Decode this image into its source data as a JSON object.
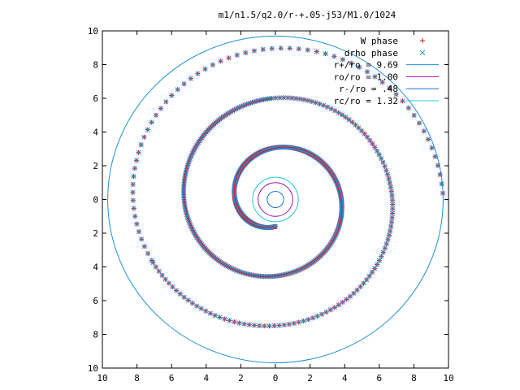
{
  "chart_data": {
    "type": "scatter",
    "title": "m1/n1.5/q2.0/r-+.05-j53/M1.0/1024",
    "xlim": [
      -10,
      10
    ],
    "ylim": [
      -10,
      10
    ],
    "x_ticks": [
      -10,
      -8,
      -6,
      -4,
      -2,
      0,
      2,
      4,
      6,
      8,
      10
    ],
    "y_ticks": [
      -10,
      -8,
      -6,
      -4,
      -2,
      0,
      2,
      4,
      6,
      8,
      10
    ],
    "x_tick_labels": [
      "10",
      "8",
      "6",
      "4",
      "2",
      "0",
      "2",
      "4",
      "6",
      "8",
      "10"
    ],
    "y_tick_labels": [
      "10",
      "8",
      "6",
      "4",
      "2",
      "0",
      "2",
      "4",
      "6",
      "8",
      "10"
    ],
    "grid": false,
    "legend_position": "top-right",
    "spiral": {
      "theta_end_deg": 0,
      "r_inner": 1.6,
      "r_outer": 9.7,
      "turns": 2.75
    },
    "series": [
      {
        "name": "W phase",
        "marker": "+",
        "color": "#e41a1c"
      },
      {
        "name": "drho phase",
        "marker": "x",
        "color": "#1f8fd6"
      }
    ],
    "circles": [
      {
        "name": "r+/ro = 9.69",
        "radius": 9.69,
        "color": "#1f8fd6"
      },
      {
        "name": "ro/ro = 1.00",
        "radius": 1.0,
        "color": "#a0149f"
      },
      {
        "name": "r-/ro = .48",
        "radius": 0.48,
        "color": "#1f6fd6"
      },
      {
        "name": "rc/ro = 1.32",
        "radius": 1.32,
        "color": "#20c8d8"
      }
    ]
  }
}
